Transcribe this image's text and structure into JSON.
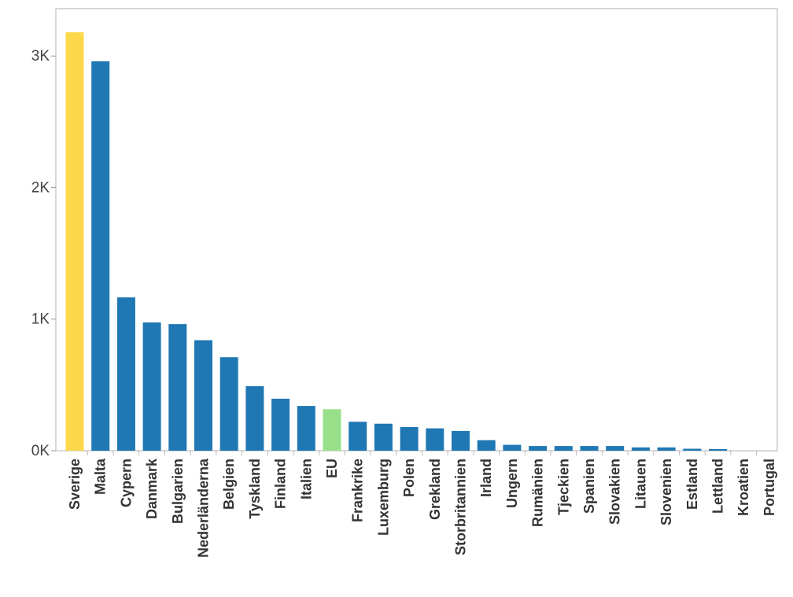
{
  "chart_data": {
    "type": "bar",
    "title": "",
    "xlabel": "",
    "ylabel": "",
    "categories": [
      "Sverige",
      "Malta",
      "Cypern",
      "Danmark",
      "Bulgarien",
      "Nederländerna",
      "Belgien",
      "Tyskland",
      "Finland",
      "Italien",
      "EU",
      "Frankrike",
      "Luxemburg",
      "Polen",
      "Grekland",
      "Storbritannien",
      "Irland",
      "Ungern",
      "Rumänien",
      "Tjeckien",
      "Spanien",
      "Slovakien",
      "Litauen",
      "Slovenien",
      "Estland",
      "Lettland",
      "Kroatien",
      "Portugal"
    ],
    "values": [
      3180,
      2960,
      1165,
      975,
      962,
      840,
      710,
      490,
      395,
      340,
      315,
      220,
      205,
      180,
      170,
      150,
      80,
      45,
      35,
      35,
      35,
      35,
      25,
      25,
      15,
      12,
      0,
      0
    ],
    "colors": {
      "default": "#1f77b4",
      "highlight_sverige": "#fdd84b",
      "highlight_eu": "#98df8a"
    },
    "highlights": {
      "Sverige": "highlight_sverige",
      "EU": "highlight_eu"
    },
    "y_ticks": [
      0,
      1000,
      2000,
      3000
    ],
    "y_tick_labels": [
      "0K",
      "1K",
      "2K",
      "3K"
    ],
    "ylim": [
      0,
      3360
    ],
    "grid": false,
    "legend": "none",
    "frame_color": "#cccccc"
  }
}
